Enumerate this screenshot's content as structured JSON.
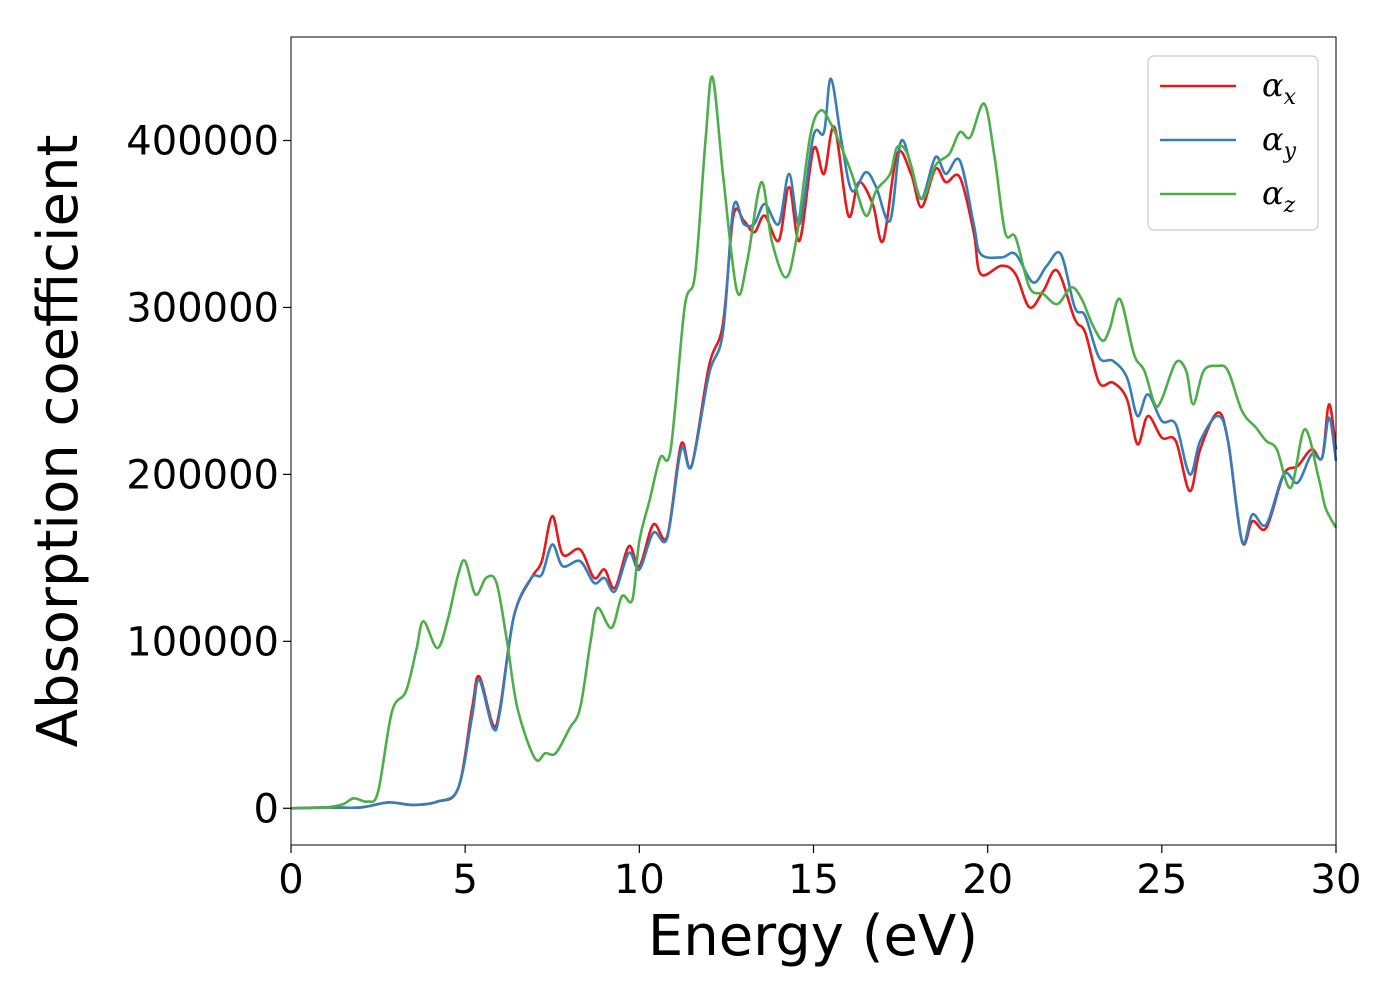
{
  "chart_data": {
    "type": "line",
    "xlabel": "Energy (eV)",
    "ylabel": "Absorption coefficient",
    "xlim": [
      0,
      30
    ],
    "ylim": [
      -22000,
      462000
    ],
    "x_ticks": [
      0,
      5,
      10,
      15,
      20,
      25,
      30
    ],
    "x_tick_labels": [
      "0",
      "5",
      "10",
      "15",
      "20",
      "25",
      "30"
    ],
    "y_ticks": [
      0,
      100000,
      200000,
      300000,
      400000
    ],
    "y_tick_labels": [
      "0",
      "100000",
      "200000",
      "300000",
      "400000"
    ],
    "grid": false,
    "legend_position": "top-right",
    "series": [
      {
        "name": "α",
        "subscript": "x",
        "color": "#e41a1c",
        "points": [
          [
            0,
            0
          ],
          [
            1,
            500
          ],
          [
            2,
            500
          ],
          [
            2.8,
            3500
          ],
          [
            3.5,
            2000
          ],
          [
            4.2,
            4000
          ],
          [
            4.8,
            12000
          ],
          [
            5.2,
            60000
          ],
          [
            5.4,
            79000
          ],
          [
            5.8,
            50000
          ],
          [
            6,
            60000
          ],
          [
            6.4,
            115000
          ],
          [
            6.9,
            138000
          ],
          [
            7.2,
            148000
          ],
          [
            7.5,
            175000
          ],
          [
            7.8,
            152000
          ],
          [
            8.3,
            155000
          ],
          [
            8.7,
            138000
          ],
          [
            9,
            143000
          ],
          [
            9.3,
            132000
          ],
          [
            9.7,
            157000
          ],
          [
            10,
            145000
          ],
          [
            10.4,
            170000
          ],
          [
            10.8,
            163000
          ],
          [
            11.2,
            218000
          ],
          [
            11.5,
            205000
          ],
          [
            12,
            265000
          ],
          [
            12.4,
            290000
          ],
          [
            12.7,
            355000
          ],
          [
            13,
            352000
          ],
          [
            13.3,
            345000
          ],
          [
            13.6,
            355000
          ],
          [
            14,
            340000
          ],
          [
            14.3,
            372000
          ],
          [
            14.6,
            340000
          ],
          [
            15,
            395000
          ],
          [
            15.3,
            380000
          ],
          [
            15.6,
            408000
          ],
          [
            16,
            355000
          ],
          [
            16.3,
            375000
          ],
          [
            16.7,
            362000
          ],
          [
            17,
            340000
          ],
          [
            17.4,
            392000
          ],
          [
            17.8,
            380000
          ],
          [
            18.1,
            360000
          ],
          [
            18.5,
            383000
          ],
          [
            18.8,
            375000
          ],
          [
            19.2,
            378000
          ],
          [
            19.6,
            345000
          ],
          [
            19.8,
            320000
          ],
          [
            20.4,
            325000
          ],
          [
            20.8,
            320000
          ],
          [
            21.2,
            300000
          ],
          [
            21.6,
            310000
          ],
          [
            22,
            322000
          ],
          [
            22.5,
            293000
          ],
          [
            22.8,
            285000
          ],
          [
            23.2,
            255000
          ],
          [
            23.6,
            255000
          ],
          [
            24,
            245000
          ],
          [
            24.3,
            218000
          ],
          [
            24.6,
            235000
          ],
          [
            25,
            222000
          ],
          [
            25.4,
            220000
          ],
          [
            25.8,
            190000
          ],
          [
            26.1,
            215000
          ],
          [
            26.6,
            237000
          ],
          [
            26.9,
            220000
          ],
          [
            27.3,
            160000
          ],
          [
            27.6,
            172000
          ],
          [
            28,
            168000
          ],
          [
            28.5,
            200000
          ],
          [
            28.9,
            205000
          ],
          [
            29.3,
            215000
          ],
          [
            29.6,
            210000
          ],
          [
            29.8,
            242000
          ],
          [
            30,
            215000
          ]
        ]
      },
      {
        "name": "α",
        "subscript": "y",
        "color": "#377eb8",
        "points": [
          [
            0,
            0
          ],
          [
            1,
            500
          ],
          [
            2,
            500
          ],
          [
            2.8,
            3500
          ],
          [
            3.5,
            2000
          ],
          [
            4.2,
            4000
          ],
          [
            4.8,
            12000
          ],
          [
            5.2,
            55000
          ],
          [
            5.4,
            77000
          ],
          [
            5.8,
            48000
          ],
          [
            6,
            58000
          ],
          [
            6.4,
            115000
          ],
          [
            6.9,
            138000
          ],
          [
            7.2,
            140000
          ],
          [
            7.5,
            158000
          ],
          [
            7.8,
            145000
          ],
          [
            8.3,
            148000
          ],
          [
            8.7,
            135000
          ],
          [
            9,
            138000
          ],
          [
            9.3,
            130000
          ],
          [
            9.7,
            153000
          ],
          [
            10,
            143000
          ],
          [
            10.4,
            165000
          ],
          [
            10.8,
            162000
          ],
          [
            11.2,
            215000
          ],
          [
            11.5,
            205000
          ],
          [
            12,
            260000
          ],
          [
            12.4,
            285000
          ],
          [
            12.7,
            360000
          ],
          [
            13,
            350000
          ],
          [
            13.3,
            350000
          ],
          [
            13.6,
            362000
          ],
          [
            14,
            350000
          ],
          [
            14.3,
            380000
          ],
          [
            14.6,
            350000
          ],
          [
            15,
            403000
          ],
          [
            15.3,
            405000
          ],
          [
            15.5,
            437000
          ],
          [
            15.8,
            400000
          ],
          [
            16.1,
            370000
          ],
          [
            16.5,
            381000
          ],
          [
            16.8,
            372000
          ],
          [
            17.2,
            352000
          ],
          [
            17.5,
            399000
          ],
          [
            17.8,
            385000
          ],
          [
            18.1,
            365000
          ],
          [
            18.5,
            390000
          ],
          [
            18.8,
            380000
          ],
          [
            19.2,
            388000
          ],
          [
            19.6,
            350000
          ],
          [
            19.8,
            332000
          ],
          [
            20.4,
            330000
          ],
          [
            20.8,
            332000
          ],
          [
            21.3,
            315000
          ],
          [
            21.7,
            325000
          ],
          [
            22.1,
            332000
          ],
          [
            22.5,
            300000
          ],
          [
            22.8,
            295000
          ],
          [
            23.2,
            270000
          ],
          [
            23.6,
            268000
          ],
          [
            24,
            258000
          ],
          [
            24.3,
            235000
          ],
          [
            24.6,
            248000
          ],
          [
            25,
            232000
          ],
          [
            25.4,
            230000
          ],
          [
            25.8,
            200000
          ],
          [
            26.1,
            220000
          ],
          [
            26.6,
            235000
          ],
          [
            26.9,
            220000
          ],
          [
            27.3,
            160000
          ],
          [
            27.6,
            176000
          ],
          [
            28,
            170000
          ],
          [
            28.5,
            200000
          ],
          [
            28.9,
            195000
          ],
          [
            29.3,
            212000
          ],
          [
            29.6,
            210000
          ],
          [
            29.8,
            234000
          ],
          [
            30,
            208000
          ]
        ]
      },
      {
        "name": "α",
        "subscript": "z",
        "color": "#4daf4a",
        "points": [
          [
            0,
            0
          ],
          [
            1,
            500
          ],
          [
            1.5,
            2500
          ],
          [
            1.8,
            6000
          ],
          [
            2.2,
            4000
          ],
          [
            2.5,
            10000
          ],
          [
            2.9,
            58000
          ],
          [
            3.3,
            70000
          ],
          [
            3.6,
            95000
          ],
          [
            3.8,
            112000
          ],
          [
            4.2,
            96000
          ],
          [
            4.5,
            113000
          ],
          [
            4.8,
            140000
          ],
          [
            5,
            148000
          ],
          [
            5.3,
            128000
          ],
          [
            5.6,
            138000
          ],
          [
            5.9,
            135000
          ],
          [
            6.2,
            100000
          ],
          [
            6.5,
            60000
          ],
          [
            7,
            30000
          ],
          [
            7.3,
            33000
          ],
          [
            7.6,
            33000
          ],
          [
            8,
            48000
          ],
          [
            8.3,
            60000
          ],
          [
            8.6,
            100000
          ],
          [
            8.8,
            120000
          ],
          [
            9.2,
            108000
          ],
          [
            9.5,
            127000
          ],
          [
            9.8,
            125000
          ],
          [
            10,
            160000
          ],
          [
            10.3,
            185000
          ],
          [
            10.6,
            210000
          ],
          [
            10.9,
            215000
          ],
          [
            11.3,
            300000
          ],
          [
            11.6,
            320000
          ],
          [
            11.9,
            400000
          ],
          [
            12.1,
            438000
          ],
          [
            12.4,
            380000
          ],
          [
            12.8,
            310000
          ],
          [
            13.1,
            328000
          ],
          [
            13.5,
            375000
          ],
          [
            13.8,
            340000
          ],
          [
            14.2,
            318000
          ],
          [
            14.5,
            340000
          ],
          [
            14.9,
            402000
          ],
          [
            15.2,
            418000
          ],
          [
            15.5,
            410000
          ],
          [
            15.8,
            396000
          ],
          [
            16.1,
            380000
          ],
          [
            16.5,
            355000
          ],
          [
            16.8,
            370000
          ],
          [
            17.2,
            380000
          ],
          [
            17.4,
            396000
          ],
          [
            17.7,
            392000
          ],
          [
            18.1,
            365000
          ],
          [
            18.5,
            385000
          ],
          [
            18.9,
            392000
          ],
          [
            19.2,
            405000
          ],
          [
            19.5,
            402000
          ],
          [
            19.9,
            422000
          ],
          [
            20.2,
            390000
          ],
          [
            20.5,
            345000
          ],
          [
            20.8,
            342000
          ],
          [
            21.2,
            312000
          ],
          [
            21.6,
            308000
          ],
          [
            22,
            302000
          ],
          [
            22.4,
            312000
          ],
          [
            22.7,
            305000
          ],
          [
            23,
            290000
          ],
          [
            23.3,
            280000
          ],
          [
            23.5,
            287000
          ],
          [
            23.8,
            305000
          ],
          [
            24.2,
            272000
          ],
          [
            24.5,
            262000
          ],
          [
            24.8,
            242000
          ],
          [
            25,
            245000
          ],
          [
            25.4,
            267000
          ],
          [
            25.7,
            262000
          ],
          [
            25.9,
            242000
          ],
          [
            26.2,
            262000
          ],
          [
            26.6,
            265000
          ],
          [
            26.9,
            262000
          ],
          [
            27.3,
            238000
          ],
          [
            27.7,
            228000
          ],
          [
            28,
            220000
          ],
          [
            28.3,
            215000
          ],
          [
            28.7,
            192000
          ],
          [
            29.1,
            227000
          ],
          [
            29.5,
            198000
          ],
          [
            29.7,
            180000
          ],
          [
            30,
            168000
          ]
        ]
      }
    ]
  }
}
